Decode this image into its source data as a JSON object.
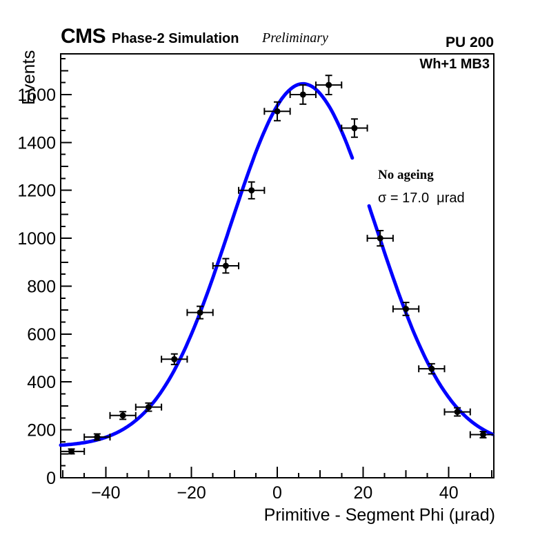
{
  "header": {
    "experiment": "CMS",
    "subtitle": "Phase-2 Simulation",
    "preliminary": "Preliminary",
    "pileup": "PU 200"
  },
  "plot_labels": {
    "chamber": "Wh+1 MB3"
  },
  "annotation": {
    "line1": "No ageing",
    "line2": "σ = 17.0  μrad"
  },
  "colors": {
    "background": "#ffffff",
    "text": "#000000",
    "fit_line": "#0000ff",
    "marker": "#000000",
    "frame": "#000000"
  },
  "chart_data": {
    "type": "scatter",
    "title": "",
    "xlabel": "Primitive - Segment Phi (μrad)",
    "ylabel": "Events",
    "xlim": [
      -50.5,
      50.5
    ],
    "ylim": [
      0,
      1770
    ],
    "grid": false,
    "x_major_ticks": [
      -40,
      -20,
      0,
      20,
      40
    ],
    "x_mid_step": 10,
    "x_minor_step": 5,
    "y_major_ticks": [
      0,
      200,
      400,
      600,
      800,
      1000,
      1200,
      1400,
      1600
    ],
    "y_mid_step": 100,
    "y_minor_step": 50,
    "points": {
      "x": [
        -48,
        -42,
        -36,
        -30,
        -24,
        -18,
        -12,
        -6,
        0,
        6,
        12,
        18,
        24,
        30,
        36,
        42,
        48
      ],
      "y": [
        110,
        170,
        260,
        295,
        495,
        690,
        885,
        1200,
        1530,
        1600,
        1640,
        1460,
        1000,
        705,
        455,
        275,
        180
      ],
      "yerr": [
        10,
        13,
        16,
        17,
        22,
        26,
        30,
        35,
        39,
        40,
        40,
        38,
        32,
        27,
        21,
        17,
        13
      ],
      "xerr": 3
    },
    "fit": {
      "shape": "gaussian_plus_constant",
      "amplitude": 1515,
      "mean": 6,
      "sigma": 17,
      "constant": 130,
      "sigma_label": "σ = 17.0 μrad",
      "draw_gap_x": [
        17.8,
        21.4
      ]
    }
  }
}
